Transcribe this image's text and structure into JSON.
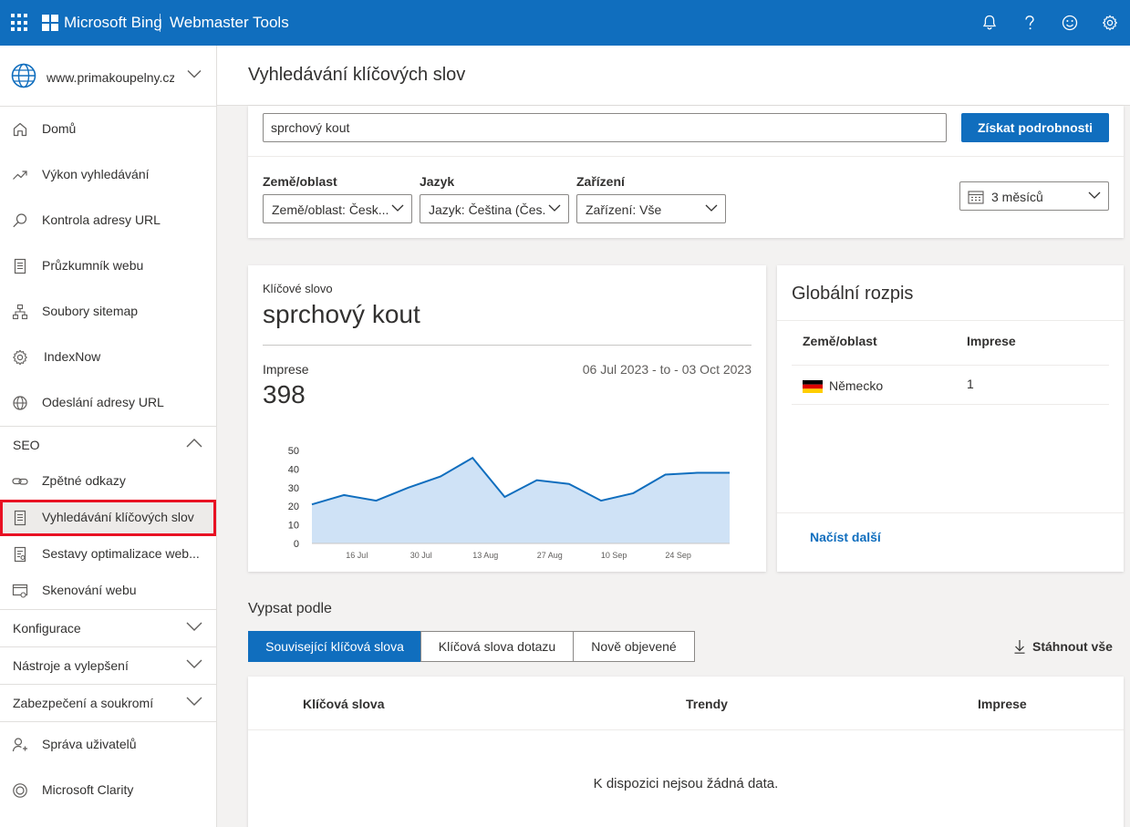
{
  "topbar": {
    "brand": "Microsoft Bing",
    "product": "Webmaster Tools",
    "icons": [
      "bell-icon",
      "help-icon",
      "smiley-icon",
      "gear-icon"
    ]
  },
  "sidebar": {
    "site": "www.primakoupelny.cz",
    "items": [
      {
        "label": "Domů",
        "icon": "home-icon"
      },
      {
        "label": "Výkon vyhledávání",
        "icon": "trend-icon"
      },
      {
        "label": "Kontrola adresy URL",
        "icon": "search-icon"
      },
      {
        "label": "Průzkumník webu",
        "icon": "document-icon"
      },
      {
        "label": "Soubory sitemap",
        "icon": "sitemap-icon"
      },
      {
        "label": "IndexNow",
        "icon": "gear-icon"
      },
      {
        "label": "Odeslání adresy URL",
        "icon": "globe-icon"
      }
    ],
    "seo": {
      "label": "SEO",
      "items": [
        {
          "label": "Zpětné odkazy",
          "icon": "link-icon"
        },
        {
          "label": "Vyhledávání klíčových slov",
          "icon": "document-icon"
        },
        {
          "label": "Sestavy optimalizace web...",
          "icon": "report-icon"
        },
        {
          "label": "Skenování webu",
          "icon": "scan-icon"
        }
      ]
    },
    "sections": [
      "Konfigurace",
      "Nástroje a vylepšení",
      "Zabezpečení a soukromí"
    ],
    "bottom": [
      {
        "label": "Správa uživatelů",
        "icon": "users-icon"
      },
      {
        "label": "Microsoft Clarity",
        "icon": "clarity-icon"
      }
    ]
  },
  "main": {
    "title": "Vyhledávání klíčových slov",
    "search": {
      "value": "sprchový kout",
      "button": "Získat podrobnosti"
    },
    "filters": {
      "country_label": "Země/oblast",
      "country_value": "Země/oblast: Česk...",
      "language_label": "Jazyk",
      "language_value": "Jazyk: Čeština (Čes...",
      "device_label": "Zařízení",
      "device_value": "Zařízení: Vše",
      "period_value": "3 měsíců"
    },
    "keyword_card": {
      "label": "Klíčové slovo",
      "keyword": "sprchový kout",
      "impressions_label": "Imprese",
      "impressions_value": "398",
      "date_range": "06 Jul 2023 - to - 03 Oct 2023"
    },
    "global": {
      "title": "Globální rozpis",
      "col_country": "Země/oblast",
      "col_impressions": "Imprese",
      "rows": [
        {
          "country": "Německo",
          "impressions": "1"
        }
      ],
      "load_more": "Načíst další"
    },
    "list": {
      "title": "Vypsat podle",
      "tabs": [
        "Související klíčová slova",
        "Klíčová slova dotazu",
        "Nově objevené"
      ],
      "selected_tab": 0,
      "download": "Stáhnout vše",
      "columns": [
        "Klíčová slova",
        "Trendy",
        "Imprese"
      ],
      "empty": "K dispozici nejsou žádná data."
    }
  },
  "chart_data": {
    "type": "area",
    "x": [
      "06 Jul",
      "13 Jul",
      "20 Jul",
      "27 Jul",
      "03 Aug",
      "10 Aug",
      "17 Aug",
      "24 Aug",
      "31 Aug",
      "07 Sep",
      "14 Sep",
      "21 Sep",
      "28 Sep",
      "03 Oct"
    ],
    "xticks": [
      "16 Jul",
      "30 Jul",
      "13 Aug",
      "27 Aug",
      "10 Sep",
      "24 Sep"
    ],
    "series": [
      {
        "values": [
          21,
          26,
          23,
          30,
          36,
          46,
          25,
          34,
          32,
          23,
          27,
          37,
          38,
          38
        ]
      }
    ],
    "yticks": [
      0,
      10,
      20,
      30,
      40,
      50
    ],
    "ylim": [
      0,
      50
    ],
    "color": "#106ebe",
    "fill": "#cfe2f6"
  }
}
